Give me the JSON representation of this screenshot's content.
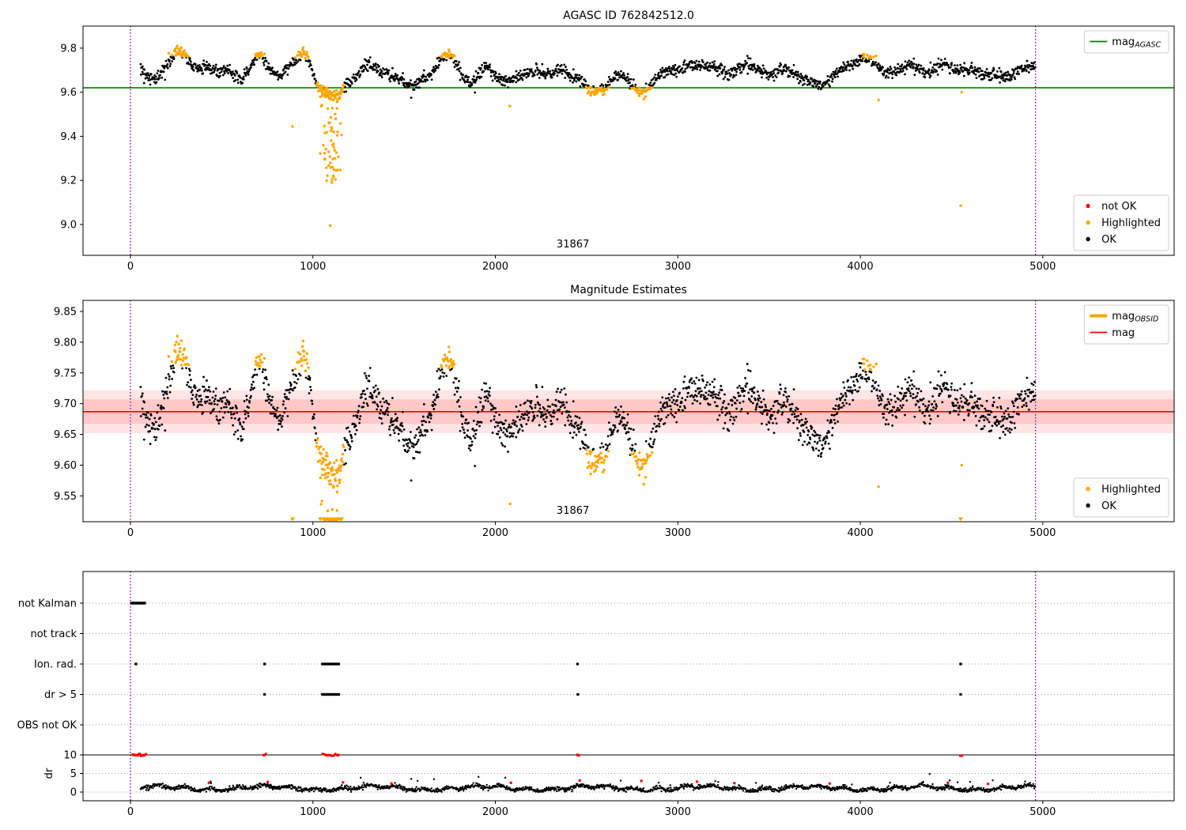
{
  "colors": {
    "ok": "#000000",
    "highlighted": "#ffa500",
    "not_ok": "#ff0000",
    "agasc_line": "#008000",
    "mag_line": "#ff0000",
    "band": "#ff0000",
    "vline": "#800080",
    "grid": "#999999",
    "frame": "#000000",
    "legend_border": "#cccccc"
  },
  "chart_data": [
    {
      "id": "mag-agasc",
      "type": "scatter",
      "title": "AGASC ID 762842512.0",
      "xlim": [
        -260,
        5720
      ],
      "ylim": [
        8.86,
        9.9
      ],
      "xticks": [
        "0",
        "1000",
        "2000",
        "3000",
        "4000",
        "5000"
      ],
      "xtick_values": [
        0,
        1000,
        2000,
        3000,
        4000,
        5000
      ],
      "yticks": [
        "9.0",
        "9.2",
        "9.4",
        "9.6",
        "9.8"
      ],
      "ytick_values": [
        9.0,
        9.2,
        9.4,
        9.6,
        9.8
      ],
      "hline": {
        "value": 9.62,
        "color": "#008000"
      },
      "vlines": [
        0,
        4960
      ],
      "annotation": {
        "text": "31867",
        "x": 2425
      },
      "legends": [
        {
          "loc": "upper right",
          "entries": [
            {
              "marker": "line",
              "color": "#008000",
              "label": "mag",
              "sub": "AGASC"
            }
          ]
        },
        {
          "loc": "lower right",
          "entries": [
            {
              "marker": "dot",
              "color": "#ff0000",
              "label": "not OK"
            },
            {
              "marker": "dot",
              "color": "#ffa500",
              "label": "Highlighted"
            },
            {
              "marker": "dot",
              "color": "#000000",
              "label": "OK"
            }
          ]
        }
      ],
      "series_spec": {
        "x_start": 55,
        "x_end": 4958,
        "n": 2000,
        "noise_sigma": 0.014,
        "trend": [
          [
            55,
            9.7
          ],
          [
            90,
            9.67
          ],
          [
            130,
            9.65
          ],
          [
            170,
            9.69
          ],
          [
            210,
            9.74
          ],
          [
            250,
            9.78
          ],
          [
            290,
            9.78
          ],
          [
            330,
            9.73
          ],
          [
            370,
            9.7
          ],
          [
            410,
            9.72
          ],
          [
            450,
            9.7
          ],
          [
            490,
            9.69
          ],
          [
            530,
            9.71
          ],
          [
            570,
            9.68
          ],
          [
            610,
            9.66
          ],
          [
            650,
            9.7
          ],
          [
            690,
            9.76
          ],
          [
            720,
            9.77
          ],
          [
            750,
            9.72
          ],
          [
            790,
            9.68
          ],
          [
            830,
            9.68
          ],
          [
            870,
            9.72
          ],
          [
            910,
            9.75
          ],
          [
            950,
            9.77
          ],
          [
            980,
            9.74
          ],
          [
            1010,
            9.66
          ],
          [
            1040,
            9.62
          ],
          [
            1080,
            9.59
          ],
          [
            1110,
            9.57
          ],
          [
            1150,
            9.6
          ],
          [
            1190,
            9.64
          ],
          [
            1230,
            9.66
          ],
          [
            1270,
            9.71
          ],
          [
            1310,
            9.73
          ],
          [
            1350,
            9.71
          ],
          [
            1390,
            9.69
          ],
          [
            1430,
            9.67
          ],
          [
            1470,
            9.67
          ],
          [
            1510,
            9.64
          ],
          [
            1550,
            9.63
          ],
          [
            1590,
            9.66
          ],
          [
            1630,
            9.67
          ],
          [
            1670,
            9.7
          ],
          [
            1710,
            9.75
          ],
          [
            1750,
            9.77
          ],
          [
            1790,
            9.73
          ],
          [
            1830,
            9.66
          ],
          [
            1870,
            9.64
          ],
          [
            1910,
            9.68
          ],
          [
            1950,
            9.72
          ],
          [
            1990,
            9.68
          ],
          [
            2030,
            9.66
          ],
          [
            2070,
            9.65
          ],
          [
            2110,
            9.66
          ],
          [
            2150,
            9.67
          ],
          [
            2190,
            9.69
          ],
          [
            2230,
            9.7
          ],
          [
            2270,
            9.68
          ],
          [
            2310,
            9.68
          ],
          [
            2350,
            9.7
          ],
          [
            2390,
            9.69
          ],
          [
            2430,
            9.67
          ],
          [
            2470,
            9.65
          ],
          [
            2510,
            9.62
          ],
          [
            2550,
            9.61
          ],
          [
            2590,
            9.61
          ],
          [
            2630,
            9.65
          ],
          [
            2670,
            9.68
          ],
          [
            2710,
            9.67
          ],
          [
            2750,
            9.63
          ],
          [
            2790,
            9.6
          ],
          [
            2830,
            9.61
          ],
          [
            2870,
            9.65
          ],
          [
            2910,
            9.69
          ],
          [
            2950,
            9.7
          ],
          [
            2990,
            9.7
          ],
          [
            3030,
            9.71
          ],
          [
            3070,
            9.73
          ],
          [
            3110,
            9.72
          ],
          [
            3150,
            9.71
          ],
          [
            3190,
            9.72
          ],
          [
            3230,
            9.7
          ],
          [
            3270,
            9.68
          ],
          [
            3310,
            9.7
          ],
          [
            3350,
            9.72
          ],
          [
            3390,
            9.73
          ],
          [
            3430,
            9.71
          ],
          [
            3470,
            9.69
          ],
          [
            3510,
            9.68
          ],
          [
            3550,
            9.7
          ],
          [
            3590,
            9.71
          ],
          [
            3630,
            9.69
          ],
          [
            3670,
            9.66
          ],
          [
            3710,
            9.65
          ],
          [
            3750,
            9.64
          ],
          [
            3790,
            9.63
          ],
          [
            3830,
            9.66
          ],
          [
            3870,
            9.69
          ],
          [
            3910,
            9.71
          ],
          [
            3950,
            9.73
          ],
          [
            3990,
            9.74
          ],
          [
            4030,
            9.75
          ],
          [
            4070,
            9.74
          ],
          [
            4110,
            9.71
          ],
          [
            4150,
            9.68
          ],
          [
            4190,
            9.69
          ],
          [
            4230,
            9.71
          ],
          [
            4270,
            9.73
          ],
          [
            4310,
            9.71
          ],
          [
            4350,
            9.69
          ],
          [
            4390,
            9.7
          ],
          [
            4430,
            9.72
          ],
          [
            4470,
            9.73
          ],
          [
            4510,
            9.71
          ],
          [
            4550,
            9.7
          ],
          [
            4590,
            9.7
          ],
          [
            4630,
            9.69
          ],
          [
            4670,
            9.68
          ],
          [
            4710,
            9.68
          ],
          [
            4750,
            9.67
          ],
          [
            4790,
            9.67
          ],
          [
            4830,
            9.68
          ],
          [
            4870,
            9.7
          ],
          [
            4910,
            9.71
          ],
          [
            4955,
            9.72
          ]
        ],
        "highlight_regions": [
          {
            "x0": 205,
            "x1": 320,
            "mode": "above",
            "thr": 9.762
          },
          {
            "x0": 675,
            "x1": 745,
            "mode": "above",
            "thr": 9.757
          },
          {
            "x0": 890,
            "x1": 1005,
            "mode": "above",
            "thr": 9.752
          },
          {
            "x0": 1015,
            "x1": 1170,
            "mode": "below",
            "thr": 9.645
          },
          {
            "x0": 1695,
            "x1": 1795,
            "mode": "above",
            "thr": 9.757
          },
          {
            "x0": 2490,
            "x1": 2630,
            "mode": "below",
            "thr": 9.625
          },
          {
            "x0": 2745,
            "x1": 2870,
            "mode": "below",
            "thr": 9.622
          },
          {
            "x0": 4010,
            "x1": 4100,
            "mode": "above",
            "thr": 9.755
          }
        ],
        "deep_dip": {
          "x0": 1040,
          "x1": 1158,
          "count": 60,
          "y_top": 9.615,
          "y_spread": 0.42
        },
        "deep_singles": [
          [
            1095,
            8.995
          ],
          [
            1103,
            9.19
          ],
          [
            1112,
            9.215
          ],
          [
            1120,
            9.3
          ],
          [
            1087,
            9.33
          ],
          [
            1129,
            9.245
          ],
          [
            1108,
            9.26
          ],
          [
            1115,
            9.35
          ],
          [
            1100,
            9.38
          ],
          [
            1135,
            9.42
          ],
          [
            1092,
            9.46
          ],
          [
            1125,
            9.48
          ]
        ],
        "extra_highlighted": [
          [
            888,
            9.445
          ],
          [
            2080,
            9.537
          ],
          [
            4100,
            9.565
          ],
          [
            4550,
            9.085
          ],
          [
            4556,
            9.6
          ]
        ]
      }
    },
    {
      "id": "mag-estimates",
      "type": "scatter",
      "title": "Magnitude Estimates",
      "xlim": [
        -260,
        5720
      ],
      "ylim": [
        9.508,
        9.868
      ],
      "xticks": [
        "0",
        "1000",
        "2000",
        "3000",
        "4000",
        "5000"
      ],
      "xtick_values": [
        0,
        1000,
        2000,
        3000,
        4000,
        5000
      ],
      "yticks": [
        "9.55",
        "9.60",
        "9.65",
        "9.70",
        "9.75",
        "9.80",
        "9.85"
      ],
      "ytick_values": [
        9.55,
        9.6,
        9.65,
        9.7,
        9.75,
        9.8,
        9.85
      ],
      "hline": {
        "value": 9.687,
        "color": "#ff0000"
      },
      "bands": [
        {
          "y0": 9.652,
          "y1": 9.722,
          "opacity": 0.1
        },
        {
          "y0": 9.667,
          "y1": 9.707,
          "opacity": 0.12
        }
      ],
      "vlines": [
        0,
        4960
      ],
      "annotation": {
        "text": "31867",
        "x": 2425
      },
      "legends": [
        {
          "loc": "upper right",
          "entries": [
            {
              "marker": "thickline",
              "color": "#ffa500",
              "label": "mag",
              "sub": "OBSID"
            },
            {
              "marker": "line",
              "color": "#ff0000",
              "label": "mag"
            }
          ]
        },
        {
          "loc": "lower right",
          "entries": [
            {
              "marker": "dot",
              "color": "#ffa500",
              "label": "Highlighted"
            },
            {
              "marker": "dot",
              "color": "#000000",
              "label": "OK"
            }
          ]
        }
      ],
      "series_ref": 0
    },
    {
      "id": "flags-dr",
      "type": "flags-dr",
      "categories": [
        "not Kalman",
        "not track",
        "Ion. rad.",
        "dr > 5",
        "OBS not OK"
      ],
      "xticks": [
        "0",
        "1000",
        "2000",
        "3000",
        "4000",
        "5000"
      ],
      "xtick_values": [
        0,
        1000,
        2000,
        3000,
        4000,
        5000
      ],
      "dr_ticks": [
        "10",
        "5",
        "0"
      ],
      "dr_tick_values": [
        10,
        5,
        0
      ],
      "ylabel": "dr",
      "dr_limit": 10,
      "vlines": [
        0,
        4960
      ],
      "flags": {
        "not_kalman": {
          "singles": [],
          "clusters": [
            [
              5,
              78,
              20
            ]
          ]
        },
        "not_track": {
          "singles": [],
          "clusters": []
        },
        "ion_rad": {
          "singles": [
            30,
            735,
            2450,
            4550
          ],
          "clusters": [
            [
              1052,
              1142,
              14
            ]
          ]
        },
        "dr_gt_5": {
          "singles": [
            735,
            2452,
            4550
          ],
          "clusters": [
            [
              1052,
              1142,
              14
            ]
          ]
        },
        "obs_not_ok": {
          "singles": [],
          "clusters": []
        }
      },
      "dr_series": {
        "x_start": 55,
        "x_end": 4958,
        "n": 2000,
        "base": 1.05,
        "amp1": 0.5,
        "period1": 95,
        "amp2": 0.35,
        "period2": 23,
        "noise": 0.3,
        "spike_prob": 0.012,
        "spike_max": 2.2,
        "cap": 5.3,
        "red_low": [
          [
            430,
            2.5
          ],
          [
            752,
            2.7
          ],
          [
            1165,
            2.6
          ],
          [
            1430,
            2.3
          ],
          [
            2085,
            2.5
          ],
          [
            2462,
            3.1
          ],
          [
            2800,
            3.0
          ],
          [
            3105,
            2.8
          ],
          [
            3310,
            2.4
          ],
          [
            3832,
            2.3
          ],
          [
            4480,
            2.5
          ],
          [
            4700,
            2.2
          ]
        ],
        "red_capped_clusters": [
          [
            12,
            85,
            14
          ],
          [
            730,
            742,
            3
          ],
          [
            1054,
            1140,
            11
          ],
          [
            2448,
            2458,
            3
          ],
          [
            4548,
            4558,
            2
          ]
        ]
      }
    }
  ]
}
